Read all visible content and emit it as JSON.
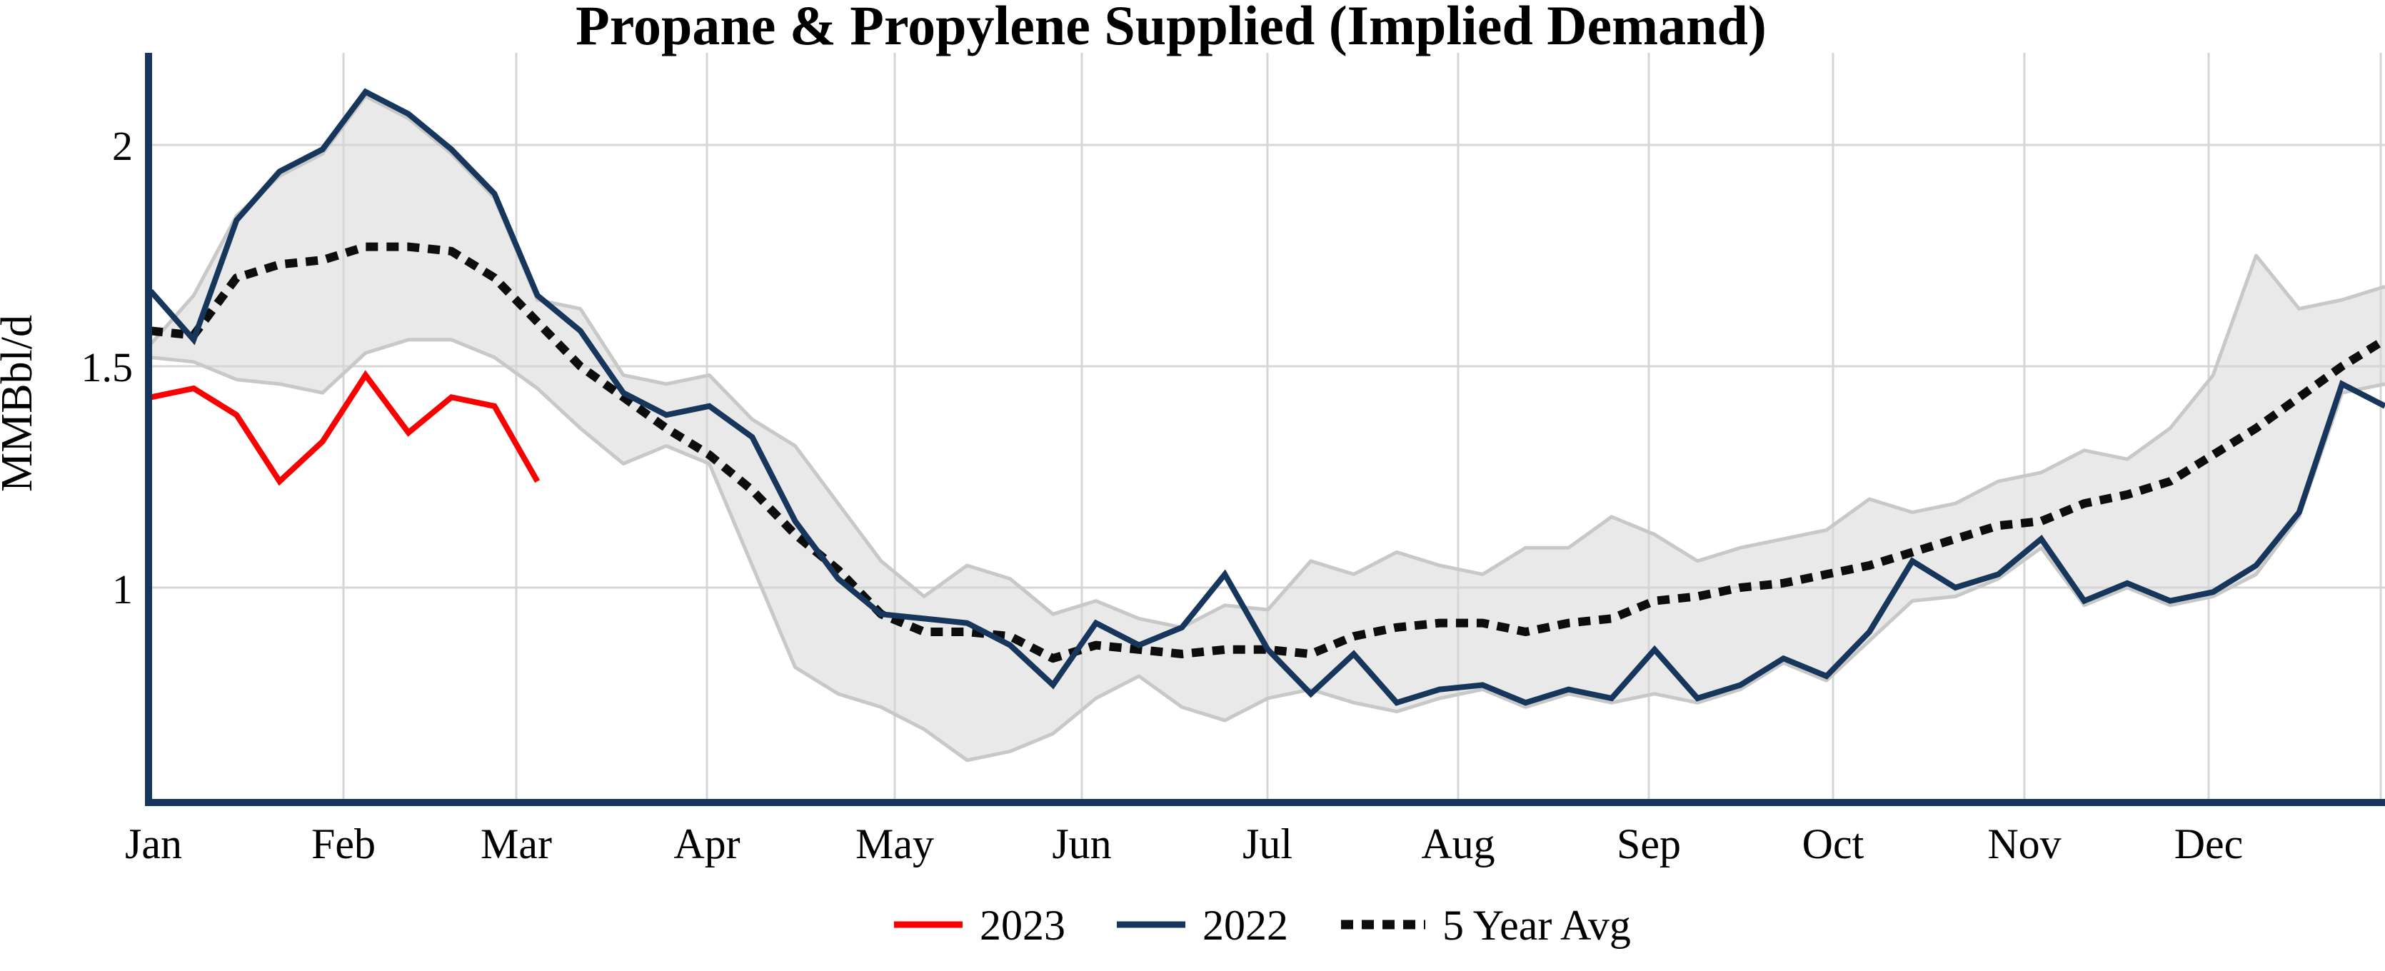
{
  "title": "Propane & Propylene Supplied (Implied Demand)",
  "y_axis": {
    "label": "MMBbl/d",
    "ticks": [
      {
        "value": 2.0,
        "label": "2"
      },
      {
        "value": 1.5,
        "label": "1.5"
      },
      {
        "value": 1.0,
        "label": "1"
      }
    ]
  },
  "x_axis": {
    "months": [
      "Jan",
      "Feb",
      "Mar",
      "Apr",
      "May",
      "Jun",
      "Jul",
      "Aug",
      "Sep",
      "Oct",
      "Nov",
      "Dec"
    ]
  },
  "legend": [
    {
      "label": "2023",
      "color": "#fb0000",
      "style": "solid"
    },
    {
      "label": "2022",
      "color": "#17365c",
      "style": "solid"
    },
    {
      "label": "5 Year Avg",
      "color": "#0d0d0d",
      "style": "dotted"
    }
  ],
  "colors": {
    "red_2023": "#fb0000",
    "navy_2022": "#17365c",
    "dotted_avg": "#0d0d0d",
    "band_fill": "#e9e9e9",
    "band_edge": "#c8c8c8",
    "gridline": "#d6d6d6",
    "axis": "#17365c"
  },
  "chart_data": {
    "type": "line",
    "title": "Propane & Propylene Supplied (Implied Demand)",
    "xlabel": "",
    "ylabel": "MMBbl/d",
    "x_unit": "week of year (1 = early Jan, 53 = Dec 31)",
    "ylim": [
      0.51,
      2.26
    ],
    "yticks": [
      1.0,
      1.5,
      2.0
    ],
    "grid": "on",
    "legend_position": "bottom-center",
    "band": {
      "name": "5-year range (shaded)",
      "fill": "#e9e9e9",
      "edge_color": "#c8c8c8",
      "top_weekly": [
        1.55,
        1.66,
        1.84,
        1.93,
        1.98,
        2.11,
        2.06,
        1.98,
        1.88,
        1.65,
        1.63,
        1.48,
        1.46,
        1.48,
        1.38,
        1.32,
        1.19,
        1.06,
        0.98,
        1.05,
        1.02,
        0.94,
        0.97,
        0.93,
        0.91,
        0.96,
        0.95,
        1.06,
        1.03,
        1.08,
        1.05,
        1.03,
        1.09,
        1.09,
        1.16,
        1.12,
        1.06,
        1.09,
        1.11,
        1.13,
        1.2,
        1.17,
        1.19,
        1.24,
        1.26,
        1.31,
        1.29,
        1.36,
        1.48,
        1.75,
        1.63,
        1.65,
        1.68
      ],
      "bottom_weekly": [
        1.52,
        1.51,
        1.47,
        1.46,
        1.44,
        1.53,
        1.56,
        1.56,
        1.52,
        1.45,
        1.36,
        1.28,
        1.32,
        1.28,
        1.05,
        0.82,
        0.76,
        0.73,
        0.68,
        0.61,
        0.63,
        0.67,
        0.75,
        0.8,
        0.73,
        0.7,
        0.75,
        0.77,
        0.74,
        0.72,
        0.75,
        0.77,
        0.73,
        0.76,
        0.74,
        0.76,
        0.74,
        0.77,
        0.83,
        0.79,
        0.88,
        0.97,
        0.98,
        1.02,
        1.09,
        0.96,
        1.0,
        0.96,
        0.98,
        1.03,
        1.16,
        1.44,
        1.46
      ]
    },
    "series": [
      {
        "name": "2023",
        "color": "#fb0000",
        "dash": "solid",
        "weekly_values": [
          1.43,
          1.45,
          1.39,
          1.24,
          1.33,
          1.48,
          1.35,
          1.43,
          1.41,
          1.24
        ]
      },
      {
        "name": "2022",
        "color": "#17365c",
        "dash": "solid",
        "weekly_values": [
          1.67,
          1.56,
          1.83,
          1.94,
          1.99,
          2.12,
          2.07,
          1.99,
          1.89,
          1.66,
          1.58,
          1.44,
          1.39,
          1.41,
          1.34,
          1.15,
          1.02,
          0.94,
          0.93,
          0.92,
          0.87,
          0.78,
          0.92,
          0.87,
          0.91,
          1.03,
          0.86,
          0.76,
          0.85,
          0.74,
          0.77,
          0.78,
          0.74,
          0.77,
          0.75,
          0.86,
          0.75,
          0.78,
          0.84,
          0.8,
          0.9,
          1.06,
          1.0,
          1.03,
          1.11,
          0.97,
          1.01,
          0.97,
          0.99,
          1.05,
          1.17,
          1.46,
          1.41
        ]
      },
      {
        "name": "5 Year Avg",
        "color": "#0d0d0d",
        "dash": "dotted",
        "weekly_values": [
          1.58,
          1.57,
          1.7,
          1.73,
          1.74,
          1.77,
          1.77,
          1.76,
          1.7,
          1.6,
          1.5,
          1.43,
          1.36,
          1.3,
          1.22,
          1.12,
          1.04,
          0.94,
          0.9,
          0.9,
          0.89,
          0.84,
          0.87,
          0.86,
          0.85,
          0.86,
          0.86,
          0.85,
          0.89,
          0.91,
          0.92,
          0.92,
          0.9,
          0.92,
          0.93,
          0.97,
          0.98,
          1.0,
          1.01,
          1.03,
          1.05,
          1.08,
          1.11,
          1.14,
          1.15,
          1.19,
          1.21,
          1.24,
          1.3,
          1.36,
          1.43,
          1.5,
          1.56
        ]
      }
    ]
  }
}
